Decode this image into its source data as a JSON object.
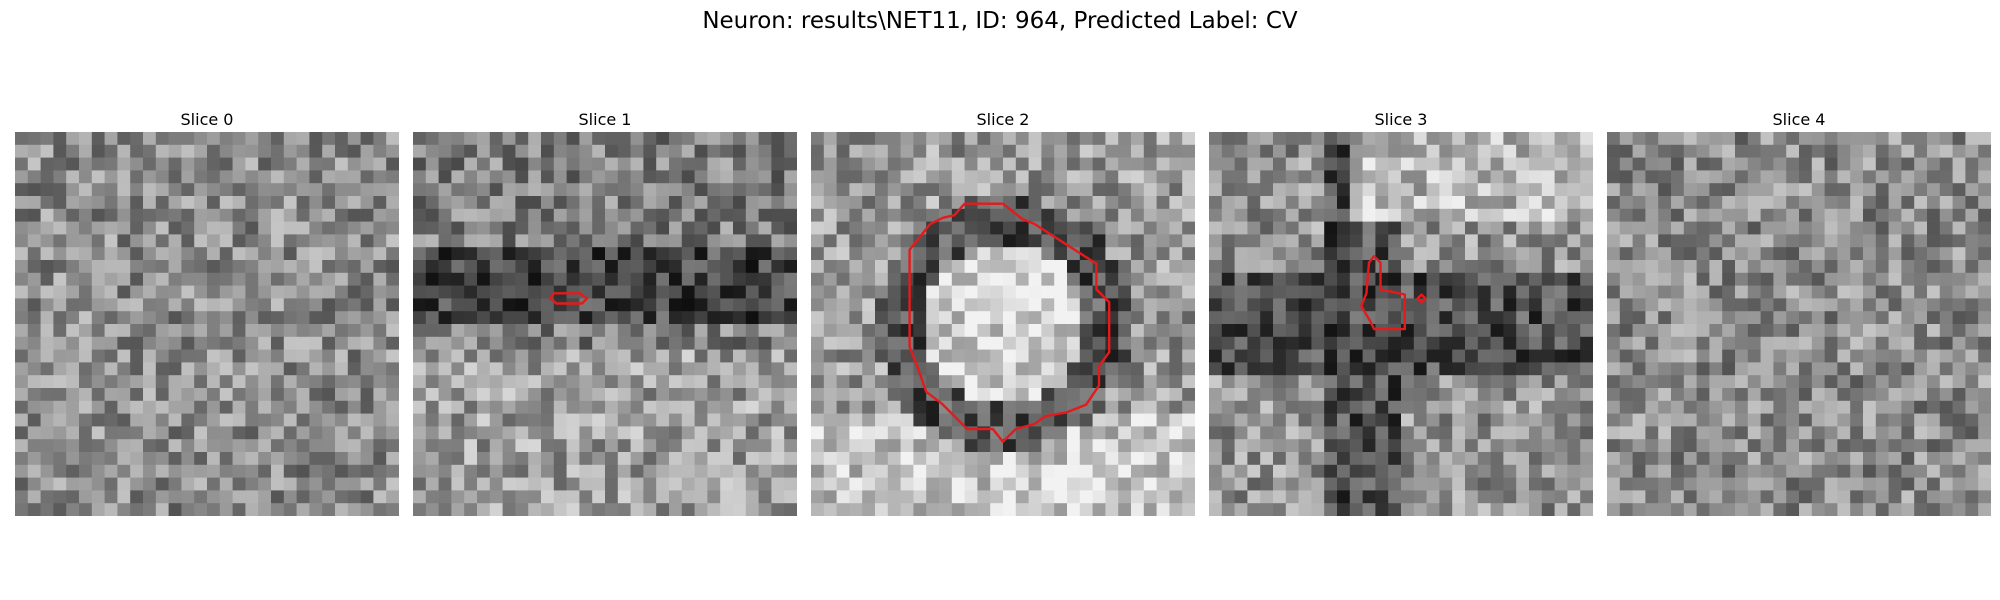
{
  "figure": {
    "title": "Neuron: results\\NET11, ID: 964, Predicted Label: CV"
  },
  "slices": [
    {
      "title": "Slice 0",
      "seed": 11,
      "pattern": "noise",
      "contour": []
    },
    {
      "title": "Slice 1",
      "seed": 23,
      "pattern": "dark-band",
      "contour": [
        "small-ring"
      ]
    },
    {
      "title": "Slice 2",
      "seed": 37,
      "pattern": "bright-cell",
      "contour": [
        "large-ring"
      ]
    },
    {
      "title": "Slice 3",
      "seed": 53,
      "pattern": "dark-cross",
      "contour": [
        "small-blob",
        "tiny-dot"
      ]
    },
    {
      "title": "Slice 4",
      "seed": 71,
      "pattern": "noise",
      "contour": []
    }
  ],
  "colors": {
    "contour": "#e41a1c",
    "background": "#ffffff"
  },
  "colormap": "gray"
}
